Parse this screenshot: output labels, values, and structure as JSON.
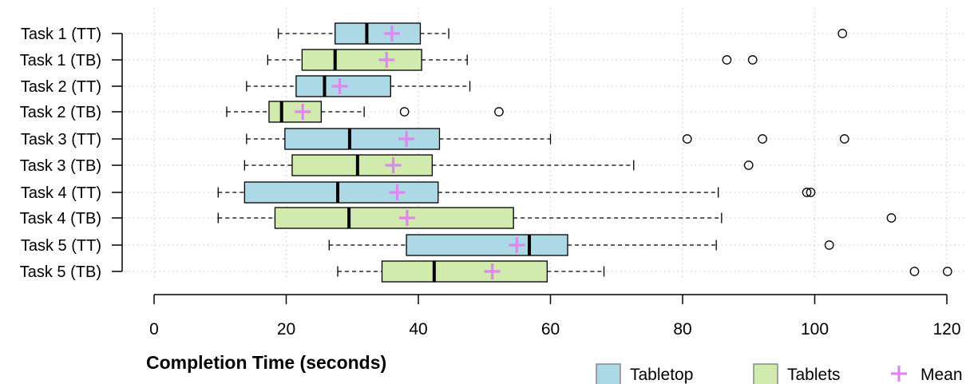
{
  "chart_data": {
    "type": "boxplot",
    "orientation": "horizontal",
    "title": "",
    "xlabel": "Completion Time (seconds)",
    "ylabel": "",
    "xlim": [
      0,
      120
    ],
    "xticks": [
      0,
      20,
      40,
      60,
      80,
      100,
      120
    ],
    "grid": true,
    "legend_position": "bottom-right",
    "colors": {
      "Tabletop": "#add8e6",
      "Tablets": "#d1eaad",
      "mean": "#dd88ee",
      "box_border": "#000000"
    },
    "legend": [
      {
        "label": "Tabletop",
        "kind": "box"
      },
      {
        "label": "Tablets",
        "kind": "box"
      },
      {
        "label": "Mean",
        "kind": "mean"
      }
    ],
    "boxes": [
      {
        "label": "Task 1 (TT)",
        "group": "Tabletop",
        "whisker_low": 18.8,
        "q1": 27.4,
        "median": 32.2,
        "q3": 40.3,
        "whisker_high": 44.6,
        "mean": 36.0,
        "outliers": [
          104.2
        ]
      },
      {
        "label": "Task 1 (TB)",
        "group": "Tablets",
        "whisker_low": 17.2,
        "q1": 22.4,
        "median": 27.4,
        "q3": 40.5,
        "whisker_high": 47.4,
        "mean": 35.2,
        "outliers": [
          86.7,
          90.6
        ]
      },
      {
        "label": "Task 2 (TT)",
        "group": "Tabletop",
        "whisker_low": 14.0,
        "q1": 21.5,
        "median": 25.8,
        "q3": 35.8,
        "whisker_high": 47.8,
        "mean": 28.1,
        "outliers": []
      },
      {
        "label": "Task 2 (TB)",
        "group": "Tablets",
        "whisker_low": 11.0,
        "q1": 17.4,
        "median": 19.3,
        "q3": 25.3,
        "whisker_high": 31.8,
        "mean": 22.5,
        "outliers": [
          37.9,
          52.2
        ]
      },
      {
        "label": "Task 3 (TT)",
        "group": "Tabletop",
        "whisker_low": 14.0,
        "q1": 19.8,
        "median": 29.6,
        "q3": 43.2,
        "whisker_high": 60.0,
        "mean": 38.2,
        "outliers": [
          80.7,
          92.1,
          104.5
        ]
      },
      {
        "label": "Task 3 (TB)",
        "group": "Tablets",
        "whisker_low": 13.7,
        "q1": 20.9,
        "median": 30.8,
        "q3": 42.1,
        "whisker_high": 72.6,
        "mean": 36.2,
        "outliers": [
          90.0
        ]
      },
      {
        "label": "Task 4 (TT)",
        "group": "Tabletop",
        "whisker_low": 9.7,
        "q1": 13.7,
        "median": 27.8,
        "q3": 43.0,
        "whisker_high": 85.4,
        "mean": 36.8,
        "outliers": [
          98.8,
          99.4
        ]
      },
      {
        "label": "Task 4 (TB)",
        "group": "Tablets",
        "whisker_low": 9.7,
        "q1": 18.3,
        "median": 29.5,
        "q3": 54.4,
        "whisker_high": 85.9,
        "mean": 38.3,
        "outliers": [
          111.6
        ]
      },
      {
        "label": "Task 5 (TT)",
        "group": "Tabletop",
        "whisker_low": 26.5,
        "q1": 38.2,
        "median": 56.8,
        "q3": 62.6,
        "whisker_high": 85.1,
        "mean": 54.9,
        "outliers": [
          102.2
        ]
      },
      {
        "label": "Task 5 (TB)",
        "group": "Tablets",
        "whisker_low": 27.8,
        "q1": 34.5,
        "median": 42.4,
        "q3": 59.5,
        "whisker_high": 68.1,
        "mean": 51.2,
        "outliers": [
          115.1,
          120.1
        ]
      }
    ]
  }
}
